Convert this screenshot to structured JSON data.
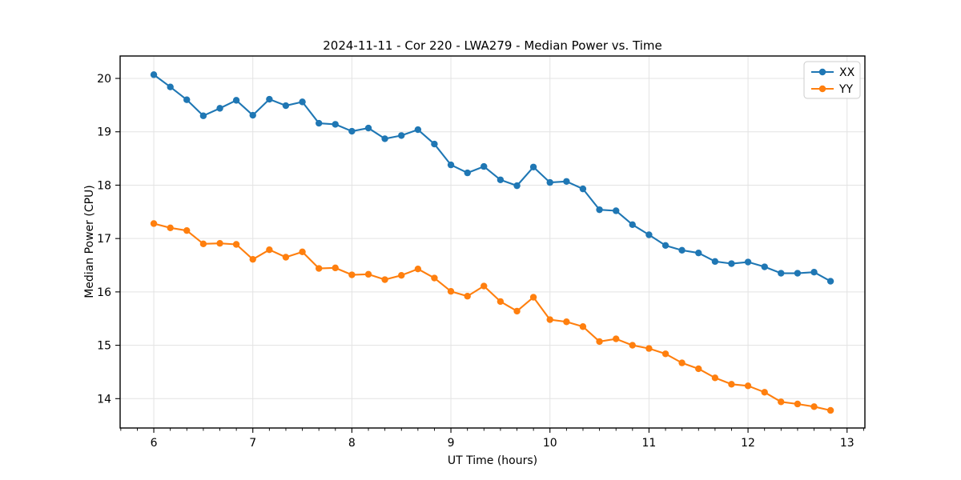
{
  "figure": {
    "title": "2024-11-11 - Cor 220 - LWA279 - Median Power vs. Time",
    "xlabel": "UT Time (hours)",
    "ylabel": "Median Power (CPU)"
  },
  "legend": {
    "position": "upper right",
    "items": [
      {
        "label": "XX",
        "color": "#1f77b4"
      },
      {
        "label": "YY",
        "color": "#ff7f0e"
      }
    ]
  },
  "style": {
    "background": "#ffffff",
    "grid_color": "#e3e3e3",
    "spine_color": "#000000",
    "tick_color": "#000000",
    "legend_border_color": "#cccccc",
    "legend_background": "#ffffff"
  },
  "chart_data": {
    "type": "line",
    "title": "2024-11-11 - Cor 220 - LWA279 - Median Power vs. Time",
    "xlabel": "UT Time (hours)",
    "ylabel": "Median Power (CPU)",
    "grid": true,
    "legend_position": "upper right",
    "xlim": [
      5.66,
      13.18
    ],
    "ylim": [
      13.45,
      20.42
    ],
    "x_ticks": [
      6,
      7,
      8,
      9,
      10,
      11,
      12,
      13
    ],
    "y_ticks": [
      14,
      15,
      16,
      17,
      18,
      19,
      20
    ],
    "x_minor_step": 0.16667,
    "x": [
      6.0,
      6.167,
      6.333,
      6.5,
      6.667,
      6.833,
      7.0,
      7.167,
      7.333,
      7.5,
      7.667,
      7.833,
      8.0,
      8.167,
      8.333,
      8.5,
      8.667,
      8.833,
      9.0,
      9.167,
      9.333,
      9.5,
      9.667,
      9.833,
      10.0,
      10.167,
      10.333,
      10.5,
      10.667,
      10.833,
      11.0,
      11.167,
      11.333,
      11.5,
      11.667,
      11.833,
      12.0,
      12.167,
      12.333,
      12.5,
      12.667,
      12.833
    ],
    "series": [
      {
        "name": "XX",
        "color": "#1f77b4",
        "marker": "circle",
        "values": [
          20.07,
          19.84,
          19.6,
          19.3,
          19.44,
          19.59,
          19.31,
          19.61,
          19.49,
          19.56,
          19.16,
          19.14,
          19.01,
          19.07,
          18.87,
          18.93,
          19.04,
          18.77,
          18.38,
          18.23,
          18.35,
          18.1,
          17.99,
          18.34,
          18.05,
          18.07,
          17.93,
          17.54,
          17.52,
          17.26,
          17.07,
          16.87,
          16.78,
          16.73,
          16.57,
          16.53,
          16.56,
          16.47,
          16.35,
          16.35,
          16.37,
          16.2
        ]
      },
      {
        "name": "YY",
        "color": "#ff7f0e",
        "marker": "circle",
        "values": [
          17.28,
          17.2,
          17.15,
          16.9,
          16.91,
          16.89,
          16.61,
          16.79,
          16.65,
          16.75,
          16.44,
          16.45,
          16.32,
          16.33,
          16.23,
          16.31,
          16.43,
          16.26,
          16.01,
          15.92,
          16.11,
          15.82,
          15.64,
          15.9,
          15.48,
          15.44,
          15.35,
          15.07,
          15.12,
          15.0,
          14.94,
          14.84,
          14.67,
          14.56,
          14.39,
          14.27,
          14.24,
          14.12,
          13.94,
          13.9,
          13.85,
          13.78
        ]
      }
    ]
  }
}
